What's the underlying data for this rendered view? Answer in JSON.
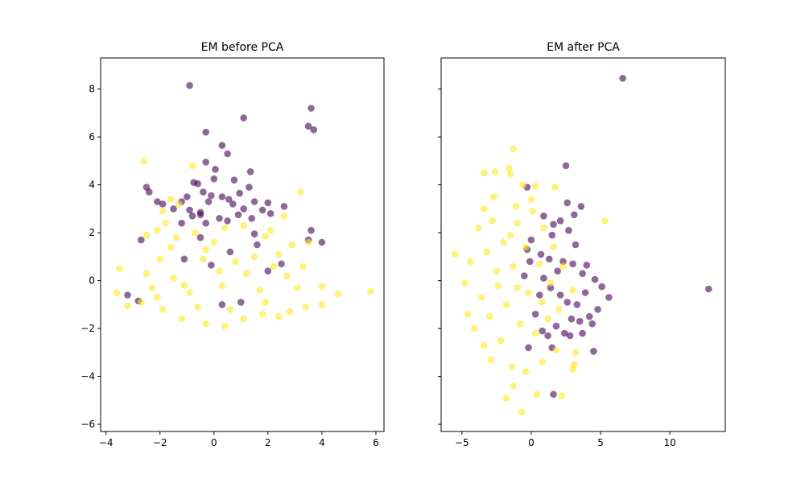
{
  "chart_data": [
    {
      "type": "scatter",
      "title": "EM before PCA",
      "xlim": [
        -4.2,
        6.3
      ],
      "ylim": [
        -6.3,
        9.3
      ],
      "xticks": [
        -4,
        -2,
        0,
        2,
        4,
        6
      ],
      "yticks": [
        -6,
        -4,
        -2,
        0,
        2,
        4,
        6,
        8
      ],
      "xtick_labels": [
        "−4",
        "−2",
        "0",
        "2",
        "4",
        "6"
      ],
      "ytick_labels": [
        "−6",
        "−4",
        "−2",
        "0",
        "2",
        "4",
        "6",
        "8"
      ],
      "ytick_labels_visible": true,
      "grid": false,
      "series": [
        {
          "color": "#440154",
          "alpha": 0.6,
          "points": [
            [
              -0.9,
              8.15
            ],
            [
              3.6,
              7.2
            ],
            [
              1.1,
              6.8
            ],
            [
              3.5,
              6.45
            ],
            [
              3.7,
              6.3
            ],
            [
              -0.3,
              6.2
            ],
            [
              0.3,
              5.65
            ],
            [
              0.5,
              5.3
            ],
            [
              -0.3,
              4.95
            ],
            [
              0.05,
              4.65
            ],
            [
              1.35,
              4.55
            ],
            [
              -0.75,
              4.1
            ],
            [
              -0.6,
              4.05
            ],
            [
              0.75,
              4.2
            ],
            [
              0.0,
              4.25
            ],
            [
              -2.5,
              3.9
            ],
            [
              -2.4,
              3.7
            ],
            [
              -2.1,
              3.3
            ],
            [
              -1.9,
              3.2
            ],
            [
              -1.2,
              3.3
            ],
            [
              -1.0,
              3.5
            ],
            [
              -0.4,
              3.7
            ],
            [
              -0.1,
              3.55
            ],
            [
              0.3,
              3.5
            ],
            [
              0.55,
              3.4
            ],
            [
              0.95,
              3.65
            ],
            [
              1.3,
              3.9
            ],
            [
              1.5,
              3.3
            ],
            [
              2.0,
              3.25
            ],
            [
              2.6,
              3.1
            ],
            [
              -1.5,
              3.0
            ],
            [
              -0.9,
              2.95
            ],
            [
              -0.5,
              2.85
            ],
            [
              -0.2,
              3.3
            ],
            [
              0.7,
              3.2
            ],
            [
              1.1,
              3.0
            ],
            [
              1.8,
              2.95
            ],
            [
              2.1,
              2.8
            ],
            [
              -0.8,
              2.7
            ],
            [
              -0.5,
              2.75
            ],
            [
              0.2,
              2.6
            ],
            [
              0.9,
              2.75
            ],
            [
              1.4,
              2.6
            ],
            [
              -1.2,
              2.4
            ],
            [
              -0.3,
              2.4
            ],
            [
              0.5,
              2.5
            ],
            [
              3.6,
              2.1
            ],
            [
              3.5,
              1.7
            ],
            [
              4.0,
              1.6
            ],
            [
              -2.7,
              1.7
            ],
            [
              1.5,
              1.95
            ],
            [
              -0.1,
              0.65
            ],
            [
              2.0,
              0.4
            ],
            [
              -0.5,
              1.8
            ],
            [
              0.6,
              1.2
            ],
            [
              1.6,
              1.5
            ],
            [
              -1.1,
              0.9
            ],
            [
              2.5,
              0.7
            ],
            [
              -3.2,
              -0.6
            ],
            [
              -2.8,
              -0.85
            ],
            [
              0.3,
              -1.0
            ],
            [
              1.0,
              -0.9
            ]
          ]
        },
        {
          "color": "#fde725",
          "alpha": 0.6,
          "points": [
            [
              -2.6,
              5.0
            ],
            [
              -0.8,
              4.8
            ],
            [
              3.2,
              3.7
            ],
            [
              -1.6,
              3.4
            ],
            [
              -1.3,
              3.2
            ],
            [
              -1.9,
              2.9
            ],
            [
              -1.8,
              2.4
            ],
            [
              2.6,
              2.7
            ],
            [
              -2.1,
              2.1
            ],
            [
              -2.5,
              1.9
            ],
            [
              3.5,
              1.6
            ],
            [
              2.9,
              1.5
            ],
            [
              -3.5,
              0.5
            ],
            [
              -3.6,
              -0.5
            ],
            [
              -3.2,
              -1.05
            ],
            [
              4.0,
              -0.25
            ],
            [
              4.0,
              -1.0
            ],
            [
              4.6,
              -0.55
            ],
            [
              5.8,
              -0.45
            ],
            [
              3.4,
              -1.1
            ],
            [
              2.8,
              -1.3
            ],
            [
              -2.7,
              -0.9
            ],
            [
              -2.5,
              0.3
            ],
            [
              -1.4,
              1.8
            ],
            [
              1.9,
              1.85
            ],
            [
              2.1,
              2.1
            ],
            [
              -0.7,
              2.0
            ],
            [
              -0.3,
              1.3
            ],
            [
              0.4,
              2.2
            ],
            [
              1.1,
              2.3
            ],
            [
              -1.6,
              1.4
            ],
            [
              2.4,
              1.1
            ],
            [
              2.2,
              0.6
            ],
            [
              3.1,
              -0.3
            ],
            [
              -2.3,
              -0.3
            ],
            [
              -1.9,
              -1.2
            ],
            [
              -1.2,
              -1.6
            ],
            [
              -0.3,
              -1.8
            ],
            [
              0.4,
              -1.9
            ],
            [
              1.1,
              -1.6
            ],
            [
              1.8,
              -1.4
            ],
            [
              2.4,
              -1.5
            ],
            [
              -0.9,
              -0.5
            ],
            [
              0.3,
              -0.2
            ],
            [
              1.2,
              0.3
            ],
            [
              -0.4,
              0.9
            ],
            [
              0.8,
              0.8
            ],
            [
              1.7,
              -0.4
            ],
            [
              -1.5,
              0.1
            ],
            [
              -2.0,
              0.9
            ],
            [
              0.0,
              1.6
            ],
            [
              1.5,
              1.0
            ],
            [
              2.7,
              0.2
            ],
            [
              -0.6,
              -1.1
            ],
            [
              0.6,
              -1.2
            ],
            [
              1.9,
              -0.9
            ],
            [
              -1.1,
              -0.2
            ],
            [
              0.2,
              0.4
            ],
            [
              -2.1,
              -0.7
            ],
            [
              3.3,
              0.6
            ]
          ]
        }
      ]
    },
    {
      "type": "scatter",
      "title": "EM after PCA",
      "xlim": [
        -6.5,
        14.0
      ],
      "ylim": [
        -6.3,
        9.3
      ],
      "xticks": [
        -5,
        0,
        5,
        10
      ],
      "yticks": [
        -6,
        -4,
        -2,
        0,
        2,
        4,
        6,
        8
      ],
      "xtick_labels": [
        "−5",
        "0",
        "5",
        "10"
      ],
      "ytick_labels_visible": false,
      "grid": false,
      "series": [
        {
          "color": "#440154",
          "alpha": 0.6,
          "points": [
            [
              6.6,
              8.45
            ],
            [
              12.8,
              -0.35
            ],
            [
              2.5,
              4.8
            ],
            [
              3.6,
              3.1
            ],
            [
              2.6,
              3.25
            ],
            [
              -0.3,
              3.9
            ],
            [
              1.6,
              2.35
            ],
            [
              2.1,
              2.5
            ],
            [
              3.1,
              2.75
            ],
            [
              0.9,
              2.7
            ],
            [
              1.5,
              1.9
            ],
            [
              2.7,
              2.1
            ],
            [
              -0.3,
              1.3
            ],
            [
              0.0,
              1.7
            ],
            [
              3.2,
              1.5
            ],
            [
              4.0,
              0.65
            ],
            [
              0.7,
              1.1
            ],
            [
              1.3,
              0.9
            ],
            [
              2.3,
              0.8
            ],
            [
              3.0,
              0.7
            ],
            [
              3.7,
              0.3
            ],
            [
              4.6,
              0.05
            ],
            [
              5.6,
              -0.7
            ],
            [
              5.1,
              -0.25
            ],
            [
              4.8,
              -1.2
            ],
            [
              4.4,
              -1.8
            ],
            [
              3.5,
              -1.7
            ],
            [
              3.7,
              -2.2
            ],
            [
              2.9,
              -1.6
            ],
            [
              2.4,
              -2.2
            ],
            [
              1.8,
              -1.9
            ],
            [
              1.2,
              -2.3
            ],
            [
              0.8,
              -2.1
            ],
            [
              1.5,
              -2.8
            ],
            [
              2.8,
              -2.3
            ],
            [
              3.3,
              -1.0
            ],
            [
              2.1,
              -0.6
            ],
            [
              1.4,
              -0.3
            ],
            [
              0.6,
              -0.6
            ],
            [
              -0.1,
              0.8
            ],
            [
              0.3,
              -1.4
            ],
            [
              4.5,
              -2.95
            ],
            [
              1.6,
              -4.75
            ],
            [
              -0.2,
              -2.8
            ],
            [
              0.9,
              0.1
            ],
            [
              2.6,
              -0.9
            ],
            [
              3.9,
              -0.5
            ],
            [
              4.2,
              -1.5
            ],
            [
              -0.5,
              0.2
            ],
            [
              1.9,
              0.4
            ]
          ]
        },
        {
          "color": "#fde725",
          "alpha": 0.6,
          "points": [
            [
              -1.3,
              5.5
            ],
            [
              -2.6,
              4.55
            ],
            [
              -1.6,
              4.7
            ],
            [
              -1.5,
              4.45
            ],
            [
              -3.4,
              4.5
            ],
            [
              -0.6,
              4.0
            ],
            [
              0.3,
              3.95
            ],
            [
              1.7,
              3.9
            ],
            [
              -2.7,
              3.5
            ],
            [
              -3.4,
              3.0
            ],
            [
              -3.8,
              2.2
            ],
            [
              5.3,
              2.5
            ],
            [
              -5.5,
              1.1
            ],
            [
              -4.4,
              0.8
            ],
            [
              -4.8,
              -0.1
            ],
            [
              -4.6,
              -1.4
            ],
            [
              -4.1,
              -2.0
            ],
            [
              -3.4,
              -2.7
            ],
            [
              -2.9,
              -3.3
            ],
            [
              -1.4,
              -3.6
            ],
            [
              -1.3,
              -4.4
            ],
            [
              -1.8,
              -4.9
            ],
            [
              -0.7,
              -5.5
            ],
            [
              0.4,
              -4.75
            ],
            [
              2.2,
              -4.8
            ],
            [
              3.0,
              -3.7
            ],
            [
              3.1,
              -3.5
            ],
            [
              3.2,
              -3.0
            ],
            [
              -0.4,
              -3.8
            ],
            [
              0.8,
              -3.4
            ],
            [
              1.8,
              -2.9
            ],
            [
              -2.2,
              -2.5
            ],
            [
              -3.0,
              -1.5
            ],
            [
              -2.5,
              0.4
            ],
            [
              -2.0,
              1.6
            ],
            [
              -1.0,
              2.4
            ],
            [
              0.1,
              2.9
            ],
            [
              0.9,
              2.2
            ],
            [
              1.6,
              1.4
            ],
            [
              2.3,
              0.6
            ],
            [
              3.0,
              -0.4
            ],
            [
              2.0,
              -1.2
            ],
            [
              1.2,
              -1.6
            ],
            [
              0.3,
              -2.2
            ],
            [
              -0.8,
              -1.8
            ],
            [
              -1.8,
              -1.0
            ],
            [
              -2.4,
              -0.2
            ],
            [
              -1.3,
              0.6
            ],
            [
              -0.4,
              1.4
            ],
            [
              0.6,
              0.7
            ],
            [
              1.4,
              -0.1
            ],
            [
              -0.2,
              -0.5
            ],
            [
              -1.0,
              -0.3
            ],
            [
              0.8,
              -0.9
            ],
            [
              -1.5,
              1.9
            ],
            [
              -2.8,
              2.5
            ],
            [
              -3.2,
              1.2
            ],
            [
              -3.6,
              -0.7
            ],
            [
              0.0,
              3.4
            ],
            [
              -1.1,
              3.1
            ]
          ]
        }
      ]
    }
  ]
}
